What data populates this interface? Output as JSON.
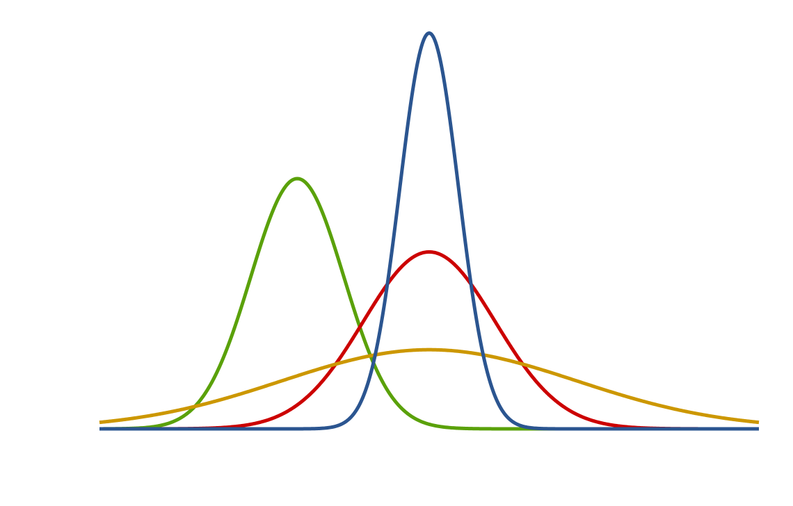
{
  "chart_data": {
    "type": "line",
    "title": "",
    "xlabel": "",
    "ylabel": "",
    "grid": false,
    "legend": "none",
    "xlim": [
      -5,
      5
    ],
    "ylim": [
      0,
      0.9
    ],
    "series": [
      {
        "kind": "normal-pdf",
        "mu": -2,
        "sigma": 0.707,
        "color": "#5aa10a"
      },
      {
        "kind": "normal-pdf",
        "mu": 0,
        "sigma": 1.0,
        "color": "#cc0000"
      },
      {
        "kind": "normal-pdf",
        "mu": 0,
        "sigma": 2.236,
        "color": "#cc9700"
      },
      {
        "kind": "normal-pdf",
        "mu": 0,
        "sigma": 0.447,
        "color": "#2b5590"
      }
    ]
  }
}
